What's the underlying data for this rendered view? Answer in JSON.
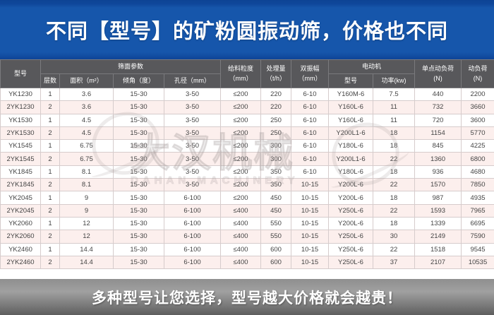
{
  "title_banner": {
    "text": "不同【型号】的矿粉圆振动筛，价格也不同"
  },
  "footer_banner": {
    "text": "多种型号让您选择，型号越大价格就会越贵！"
  },
  "watermark": {
    "cn": "大汉机械",
    "en": "DAHAN MACHINERY"
  },
  "colors": {
    "banner_blue": "#1656ab",
    "header_gray": "#58585b",
    "row_pink": "#fcefed",
    "footer_gray_top": "#8f8f8f",
    "footer_gray_bottom": "#5e5e5e"
  },
  "table": {
    "header": {
      "model": "型号",
      "screen_params": "筛面参数",
      "layers": "层数",
      "area": "面积（m²）",
      "angle": "倾角（度）",
      "aperture": "孔径（mm）",
      "feed_size": "给料粒度\n（mm）",
      "capacity": "处理量\n（t/h）",
      "amplitude": "双振幅\n（mm）",
      "motor": "电动机",
      "motor_model": "型号",
      "motor_power": "功率(kw)",
      "single_point_load": "单点动负荷\n(N)",
      "dynamic_load": "动负荷\n(N)"
    },
    "column_keys": [
      "model",
      "layers",
      "area",
      "angle",
      "aperture",
      "feed-size",
      "capacity",
      "amplitude",
      "motor-model",
      "motor-power",
      "single-point-load",
      "dynamic-load"
    ],
    "rows": [
      [
        "YK1230",
        "1",
        "3.6",
        "15-30",
        "3-50",
        "≤200",
        "220",
        "6-10",
        "Y160M-6",
        "7.5",
        "440",
        "2200"
      ],
      [
        "2YK1230",
        "2",
        "3.6",
        "15-30",
        "3-50",
        "≤200",
        "220",
        "6-10",
        "Y160L-6",
        "11",
        "732",
        "3660"
      ],
      [
        "YK1530",
        "1",
        "4.5",
        "15-30",
        "3-50",
        "≤200",
        "250",
        "6-10",
        "Y160L-6",
        "11",
        "720",
        "3600"
      ],
      [
        "2YK1530",
        "2",
        "4.5",
        "15-30",
        "3-50",
        "≤200",
        "250",
        "6-10",
        "Y200L1-6",
        "18",
        "1154",
        "5770"
      ],
      [
        "YK1545",
        "1",
        "6.75",
        "15-30",
        "3-50",
        "≤200",
        "300",
        "6-10",
        "Y180L-6",
        "18",
        "845",
        "4225"
      ],
      [
        "2YK1545",
        "2",
        "6.75",
        "15-30",
        "3-50",
        "≤200",
        "300",
        "6-10",
        "Y200L1-6",
        "22",
        "1360",
        "6800"
      ],
      [
        "YK1845",
        "1",
        "8.1",
        "15-30",
        "3-50",
        "≤200",
        "350",
        "6-10",
        "Y180L-6",
        "18",
        "936",
        "4680"
      ],
      [
        "2YK1845",
        "2",
        "8.1",
        "15-30",
        "3-50",
        "≤200",
        "350",
        "10-15",
        "Y200L-6",
        "22",
        "1570",
        "7850"
      ],
      [
        "YK2045",
        "1",
        "9",
        "15-30",
        "6-100",
        "≤200",
        "450",
        "10-15",
        "Y200L-6",
        "18",
        "987",
        "4935"
      ],
      [
        "2YK2045",
        "2",
        "9",
        "15-30",
        "6-100",
        "≤400",
        "450",
        "10-15",
        "Y250L-6",
        "22",
        "1593",
        "7965"
      ],
      [
        "YK2060",
        "1",
        "12",
        "15-30",
        "6-100",
        "≤400",
        "550",
        "10-15",
        "Y200L-6",
        "18",
        "1339",
        "6695"
      ],
      [
        "2YK2060",
        "2",
        "12",
        "15-30",
        "6-100",
        "≤400",
        "550",
        "10-15",
        "Y250L-6",
        "30",
        "2149",
        "7590"
      ],
      [
        "YK2460",
        "1",
        "14.4",
        "15-30",
        "6-100",
        "≤400",
        "600",
        "10-15",
        "Y250L-6",
        "22",
        "1518",
        "9545"
      ],
      [
        "2YK2460",
        "2",
        "14.4",
        "15-30",
        "6-100",
        "≤400",
        "600",
        "10-15",
        "Y250L-6",
        "37",
        "2107",
        "10535"
      ]
    ]
  }
}
